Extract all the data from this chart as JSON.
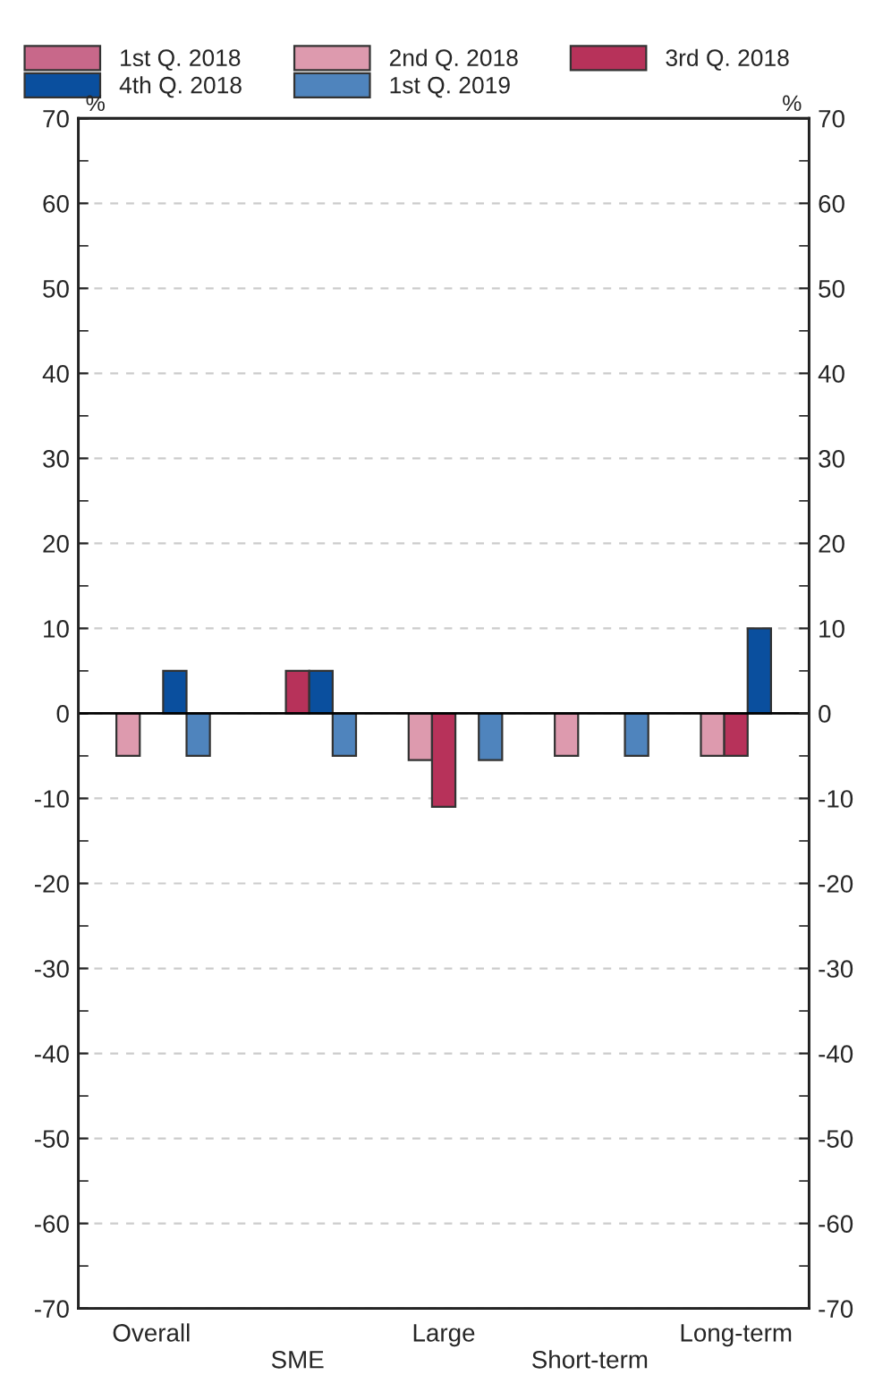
{
  "chart_data": {
    "type": "bar",
    "categories": [
      "Overall",
      "SME",
      "Large",
      "Short-term",
      "Long-term"
    ],
    "series": [
      {
        "name": "1st Q. 2018",
        "color": "#c8688a",
        "values": [
          null,
          null,
          null,
          null,
          null
        ]
      },
      {
        "name": "2nd Q. 2018",
        "color": "#dd9aae",
        "values": [
          -5,
          null,
          -5.5,
          -5,
          -5
        ]
      },
      {
        "name": "3rd Q. 2018",
        "color": "#b7325a",
        "values": [
          null,
          5,
          -11,
          null,
          -5
        ]
      },
      {
        "name": "4th Q. 2018",
        "color": "#0a4f9e",
        "values": [
          5,
          5,
          null,
          null,
          10
        ]
      },
      {
        "name": "1st Q. 2019",
        "color": "#4f84bd",
        "values": [
          -5,
          -5,
          -5.5,
          -5,
          null
        ]
      }
    ],
    "ylabel": "%",
    "y2label": "%",
    "ylim": [
      -70,
      70
    ],
    "yticks": [
      -70,
      -60,
      -50,
      -40,
      -30,
      -20,
      -10,
      0,
      10,
      20,
      30,
      40,
      50,
      60,
      70
    ],
    "y2lim": [
      -70,
      70
    ],
    "y2ticks": [
      -70,
      -60,
      -50,
      -40,
      -30,
      -20,
      -10,
      0,
      10,
      20,
      30,
      40,
      50,
      60,
      70
    ],
    "ref_lines": [
      {
        "axis": "y",
        "value": 0,
        "color": "#000000"
      }
    ],
    "grid": true,
    "legend": "top"
  }
}
